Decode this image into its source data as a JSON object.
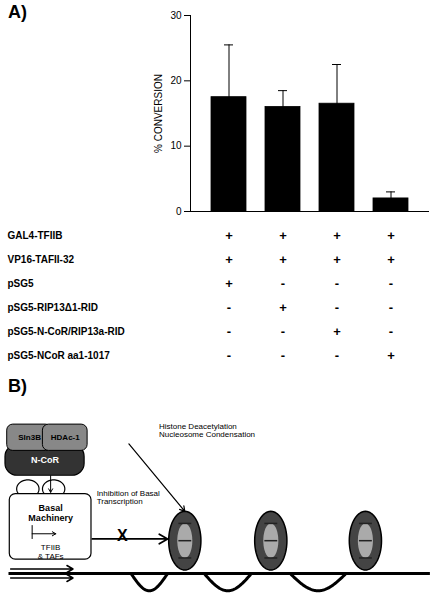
{
  "chart_data": [
    {
      "type": "bar",
      "title": "A)",
      "categories": [
        null,
        null,
        null,
        null
      ],
      "values": [
        17.5,
        16.0,
        16.5,
        2.0
      ],
      "errors": [
        8.0,
        2.5,
        6.0,
        1.0
      ],
      "color": "#000000",
      "ylabel": "% CONVERSION",
      "ylim": [
        0,
        30
      ],
      "yticks": [
        0,
        10,
        20,
        30
      ],
      "tick_labels": "y",
      "table": [
        {
          "label": "GAL4-TFIIB",
          "values": [
            "+",
            "+",
            "+",
            "+"
          ]
        },
        {
          "label": "VP16-TAFII-32",
          "values": [
            "+",
            "+",
            "+",
            "+"
          ]
        },
        {
          "label": "pSG5",
          "values": [
            "+",
            "-",
            "-",
            "-"
          ]
        },
        {
          "label": "pSG5-RIP13Δ1-RID",
          "values": [
            "-",
            "+",
            "-",
            "-"
          ]
        },
        {
          "label": "pSG5-N-CoR/RIP13a-RID",
          "values": [
            "-",
            "-",
            "+",
            "-"
          ]
        },
        {
          "label": "pSG5-NCoR aa1-1017",
          "values": [
            "-",
            "-",
            "-",
            "+"
          ]
        }
      ]
    },
    {
      "type": "diagram",
      "title": "B)",
      "annotations": [
        "N-CoR",
        "SIn3B",
        "HDAc-1",
        "Basal",
        "Machinery",
        "TFIIB",
        "& TAFs",
        "Inhibition of Basal\nTranscription",
        "X",
        "Histone Deacetylation\nNucleosome Condensation"
      ]
    }
  ]
}
